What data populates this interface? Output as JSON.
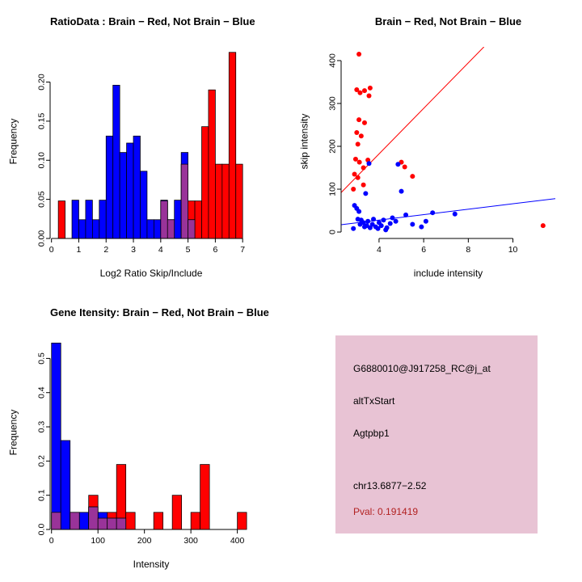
{
  "colors": {
    "red": "#FF0000",
    "blue": "#0000FF",
    "overlap": "#993399",
    "info_bg": "#E8C3D4",
    "pval": "#B22222",
    "axis": "#000000"
  },
  "info_box": {
    "lines": [
      "G6880010@J917258_RC@j_at",
      "altTxStart",
      "Agtpbp1",
      "chr13.6877−2.52"
    ],
    "pval": "Pval: 0.191419"
  },
  "chart_data": [
    {
      "type": "bar",
      "title": "RatioData : Brain − Red, Not Brain − Blue",
      "xlabel": "Log2 Ratio Skip/Include",
      "ylabel": "Frequency",
      "xlim": [
        -0.05,
        7.35
      ],
      "ylim": [
        0,
        0.245
      ],
      "bin_width": 0.25,
      "grid": false,
      "legend": "none",
      "xticks": {
        "values": [
          0,
          1,
          2,
          3,
          4,
          5,
          6,
          7
        ],
        "labels": [
          "0",
          "1",
          "2",
          "3",
          "4",
          "5",
          "6",
          "7"
        ]
      },
      "yticks": {
        "values": [
          0,
          0.05,
          0.1,
          0.15,
          0.2
        ],
        "labels": [
          "0.00",
          "0.05",
          "0.10",
          "0.15",
          "0.20"
        ]
      },
      "overlap_color": "#993399",
      "series": [
        {
          "name": "red",
          "color": "#FF0000",
          "bins": [
            [
              0.25,
              0.048
            ],
            [
              4.0,
              0.048
            ],
            [
              4.25,
              0.024
            ],
            [
              4.75,
              0.095
            ],
            [
              5.0,
              0.048
            ],
            [
              5.25,
              0.048
            ],
            [
              5.5,
              0.143
            ],
            [
              5.75,
              0.19
            ],
            [
              6.0,
              0.095
            ],
            [
              6.25,
              0.095
            ],
            [
              6.5,
              0.238
            ],
            [
              6.75,
              0.095
            ]
          ]
        },
        {
          "name": "blue",
          "color": "#0000FF",
          "bins": [
            [
              0.75,
              0.049
            ],
            [
              1.0,
              0.024
            ],
            [
              1.25,
              0.049
            ],
            [
              1.5,
              0.024
            ],
            [
              1.75,
              0.049
            ],
            [
              2.0,
              0.131
            ],
            [
              2.25,
              0.196
            ],
            [
              2.5,
              0.11
            ],
            [
              2.75,
              0.122
            ],
            [
              3.0,
              0.131
            ],
            [
              3.25,
              0.086
            ],
            [
              3.5,
              0.024
            ],
            [
              3.75,
              0.024
            ],
            [
              4.0,
              0.049
            ],
            [
              4.25,
              0.024
            ],
            [
              4.5,
              0.049
            ],
            [
              4.75,
              0.11
            ],
            [
              5.0,
              0.024
            ]
          ]
        }
      ]
    },
    {
      "type": "scatter",
      "title": "Brain − Red, Not Brain − Blue",
      "xlabel": "include intensity",
      "ylabel": "skip intensity",
      "xlim": [
        2.3,
        11.9
      ],
      "ylim": [
        -15,
        432
      ],
      "grid": false,
      "legend": "none",
      "xticks": {
        "values": [
          4,
          6,
          8,
          10
        ],
        "labels": [
          "4",
          "6",
          "8",
          "10"
        ]
      },
      "yticks": {
        "values": [
          0,
          100,
          200,
          300,
          400
        ],
        "labels": [
          "0",
          "100",
          "200",
          "300",
          "400"
        ]
      },
      "series": [
        {
          "name": "red",
          "color": "#FF0000",
          "points": [
            [
              3.1,
              415
            ],
            [
              3.0,
              332
            ],
            [
              3.15,
              325
            ],
            [
              3.35,
              330
            ],
            [
              3.6,
              336
            ],
            [
              3.55,
              318
            ],
            [
              3.1,
              262
            ],
            [
              3.35,
              255
            ],
            [
              3.0,
              232
            ],
            [
              3.2,
              224
            ],
            [
              3.05,
              205
            ],
            [
              2.95,
              170
            ],
            [
              3.12,
              163
            ],
            [
              3.5,
              168
            ],
            [
              3.3,
              150
            ],
            [
              2.9,
              135
            ],
            [
              3.05,
              127
            ],
            [
              3.3,
              110
            ],
            [
              2.85,
              100
            ],
            [
              5.0,
              163
            ],
            [
              5.15,
              152
            ],
            [
              5.5,
              130
            ],
            [
              11.35,
              15
            ]
          ]
        },
        {
          "name": "blue",
          "color": "#0000FF",
          "points": [
            [
              2.85,
              8
            ],
            [
              2.9,
              62
            ],
            [
              3.0,
              55
            ],
            [
              3.1,
              48
            ],
            [
              3.05,
              30
            ],
            [
              3.2,
              28
            ],
            [
              3.15,
              18
            ],
            [
              3.3,
              22
            ],
            [
              3.35,
              12
            ],
            [
              3.4,
              90
            ],
            [
              3.45,
              15
            ],
            [
              3.5,
              25
            ],
            [
              3.55,
              160
            ],
            [
              3.6,
              10
            ],
            [
              3.7,
              18
            ],
            [
              3.75,
              30
            ],
            [
              3.85,
              12
            ],
            [
              3.95,
              8
            ],
            [
              4.0,
              22
            ],
            [
              4.1,
              15
            ],
            [
              4.2,
              28
            ],
            [
              4.3,
              5
            ],
            [
              4.35,
              10
            ],
            [
              4.5,
              20
            ],
            [
              4.6,
              33
            ],
            [
              4.75,
              25
            ],
            [
              4.85,
              158
            ],
            [
              5.0,
              95
            ],
            [
              5.2,
              40
            ],
            [
              5.5,
              18
            ],
            [
              5.9,
              12
            ],
            [
              6.1,
              25
            ],
            [
              6.4,
              45
            ],
            [
              7.4,
              42
            ]
          ]
        }
      ],
      "lines": [
        {
          "name": "red-fit",
          "color": "#FF0000",
          "x1": 2.3,
          "y1": 92,
          "x2": 8.7,
          "y2": 432
        },
        {
          "name": "blue-fit",
          "color": "#0000FF",
          "x1": 2.3,
          "y1": 17,
          "x2": 11.9,
          "y2": 78
        }
      ]
    },
    {
      "type": "bar",
      "title": "Gene Itensity: Brain − Red, Not Brain − Blue",
      "xlabel": "Intensity",
      "ylabel": "Frequency",
      "xlim": [
        -3,
        432
      ],
      "ylim": [
        0,
        0.56
      ],
      "bin_width": 20,
      "grid": false,
      "legend": "none",
      "xticks": {
        "values": [
          0,
          100,
          200,
          300,
          400
        ],
        "labels": [
          "0",
          "100",
          "200",
          "300",
          "400"
        ]
      },
      "yticks": {
        "values": [
          0,
          0.1,
          0.2,
          0.3,
          0.4,
          0.5
        ],
        "labels": [
          "0.0",
          "0.1",
          "0.2",
          "0.3",
          "0.4",
          "0.5"
        ]
      },
      "overlap_color": "#993399",
      "series": [
        {
          "name": "red",
          "color": "#FF0000",
          "bins": [
            [
              0,
              0.05
            ],
            [
              40,
              0.05
            ],
            [
              80,
              0.1
            ],
            [
              100,
              0.033
            ],
            [
              120,
              0.05
            ],
            [
              140,
              0.19
            ],
            [
              160,
              0.05
            ],
            [
              220,
              0.05
            ],
            [
              260,
              0.1
            ],
            [
              300,
              0.05
            ],
            [
              320,
              0.19
            ],
            [
              400,
              0.05
            ]
          ]
        },
        {
          "name": "blue",
          "color": "#0000FF",
          "bins": [
            [
              0,
              0.545
            ],
            [
              20,
              0.26
            ],
            [
              40,
              0.05
            ],
            [
              60,
              0.05
            ],
            [
              80,
              0.066
            ],
            [
              100,
              0.05
            ],
            [
              120,
              0.033
            ],
            [
              140,
              0.033
            ]
          ]
        }
      ]
    }
  ]
}
